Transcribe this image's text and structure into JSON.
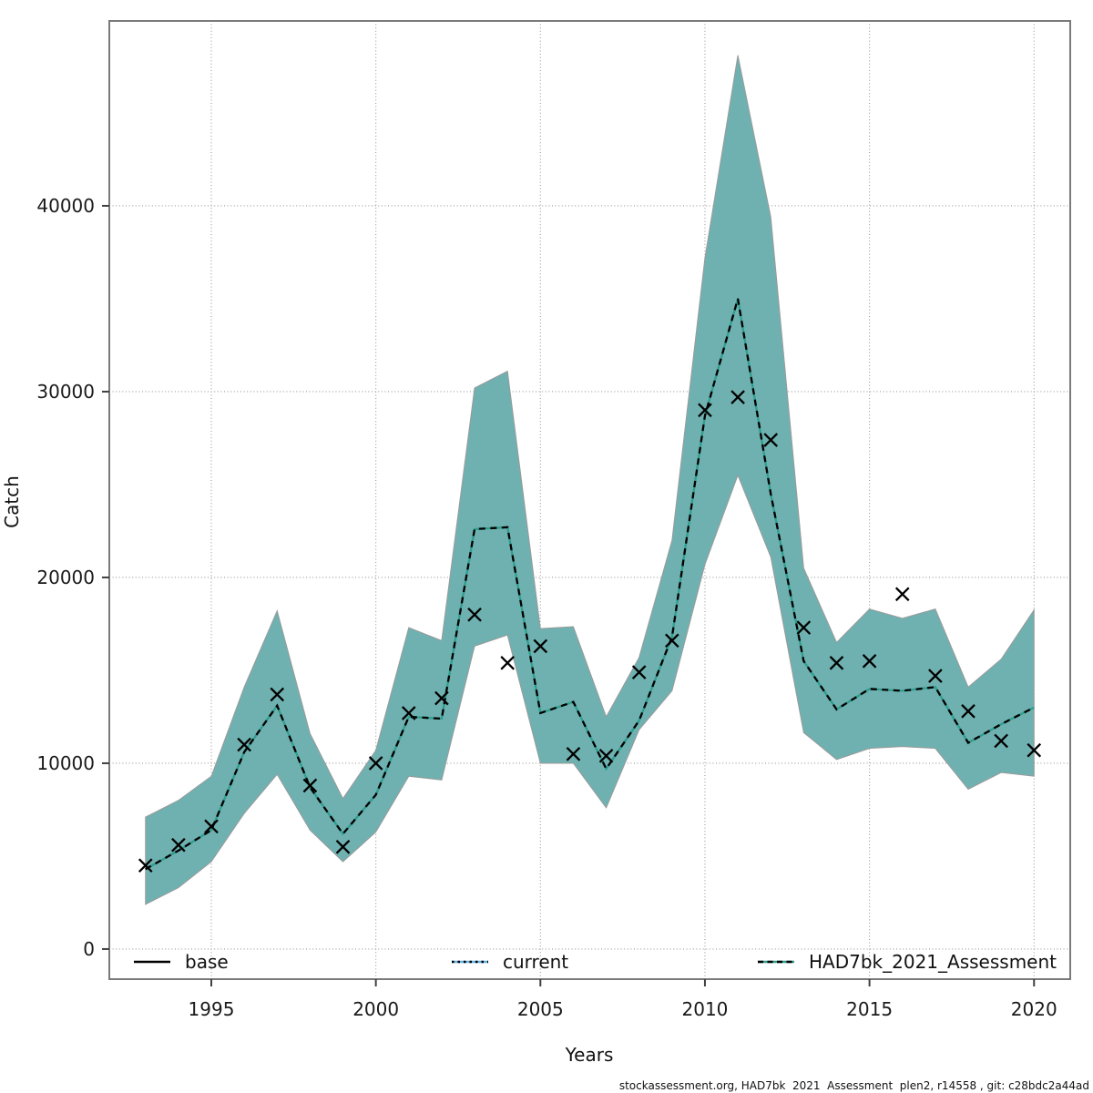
{
  "footer": {
    "text": "stockassessment.org, HAD7bk  2021  Assessment  plen2, r14558 , git: c28bdc2a44ad"
  },
  "chart_data": {
    "type": "line",
    "title": "",
    "xlabel": "Years",
    "ylabel": "Catch",
    "grid": "dotted",
    "legend_position": "bottom-inside",
    "xlim": [
      1991.9,
      2021.1
    ],
    "ylim": [
      -1620,
      49950
    ],
    "x_tick_values": [
      1995,
      2000,
      2005,
      2010,
      2015,
      2020
    ],
    "x_tick_labels": [
      "1995",
      "2000",
      "2005",
      "2010",
      "2015",
      "2020"
    ],
    "y_tick_values": [
      0,
      10000,
      20000,
      30000,
      40000
    ],
    "y_tick_labels": [
      "0",
      "10000",
      "20000",
      "30000",
      "40000"
    ],
    "years": [
      1993,
      1994,
      1995,
      1996,
      1997,
      1998,
      1999,
      2000,
      2001,
      2002,
      2003,
      2004,
      2005,
      2006,
      2007,
      2008,
      2009,
      2010,
      2011,
      2012,
      2013,
      2014,
      2015,
      2016,
      2017,
      2018,
      2019,
      2020
    ],
    "series": [
      {
        "name": "observed-catch",
        "marker": "x",
        "color": "#000000",
        "values": [
          4500,
          5600,
          6600,
          11000,
          13700,
          8800,
          5500,
          10000,
          12700,
          13500,
          18000,
          15400,
          16300,
          10500,
          10400,
          14900,
          16600,
          29000,
          29700,
          27400,
          17300,
          15400,
          15500,
          19100,
          14700,
          12800,
          11200,
          10700
        ]
      },
      {
        "name": "assessment-fit",
        "marker": "none",
        "style": "dashed",
        "underlay_color": "#2f9e8e",
        "dash_color": "#000000",
        "values": [
          4300,
          5300,
          6400,
          10600,
          13100,
          8700,
          6200,
          8300,
          12500,
          12400,
          22600,
          22700,
          12700,
          13300,
          9700,
          12300,
          16800,
          28700,
          35000,
          24500,
          15500,
          12900,
          14000,
          13900,
          14100,
          11100,
          12100,
          13000
        ]
      }
    ],
    "band": {
      "name": "confidence-interval",
      "fill": "#6fb1b0",
      "edge": "#9a9a9a",
      "lower": [
        2400,
        3300,
        4700,
        7300,
        9400,
        6400,
        4700,
        6300,
        9300,
        9100,
        16300,
        16900,
        10000,
        10000,
        7600,
        11800,
        13900,
        20700,
        25500,
        21100,
        11650,
        10200,
        10800,
        10900,
        10800,
        8600,
        9500,
        9300
      ],
      "upper": [
        7100,
        8000,
        9300,
        14100,
        18200,
        11600,
        8100,
        10700,
        17300,
        16600,
        30200,
        31100,
        17250,
        17350,
        12500,
        15700,
        22000,
        37200,
        48100,
        39400,
        20500,
        16500,
        18300,
        17800,
        18300,
        14100,
        15600,
        18250
      ]
    },
    "legend": [
      {
        "label": "base",
        "line_color": "#000000",
        "line_style": "solid"
      },
      {
        "label": "current",
        "line_color": "#66b3e2",
        "line_style": "dotted-black-over-blue"
      },
      {
        "label": "HAD7bk_2021_Assessment",
        "line_color": "#2f9e8e",
        "line_style": "dashed-black-over-teal"
      }
    ],
    "colors": {
      "gridline": "#999999",
      "plot_border": "#7a7a7a",
      "tick": "#404040",
      "tick_label": "#1a1a1a"
    }
  }
}
